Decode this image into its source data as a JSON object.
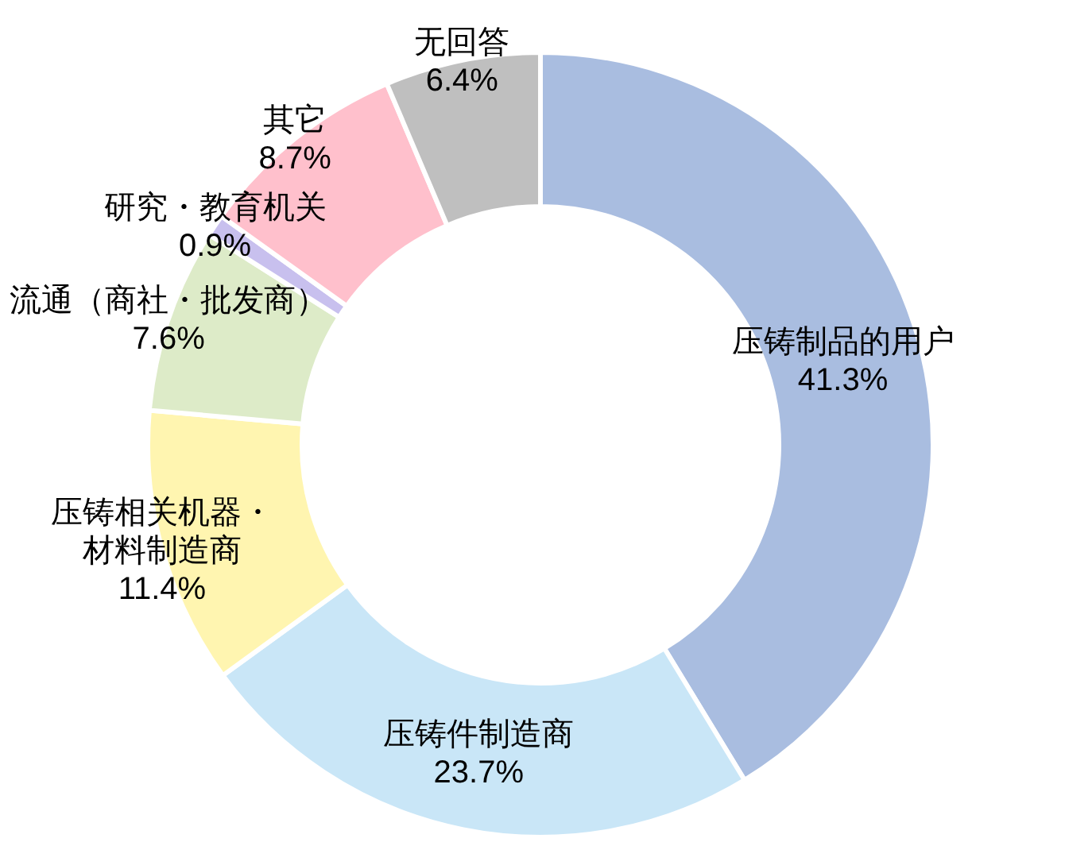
{
  "chart_data": {
    "type": "donut",
    "categories": [
      "压铸制品的用户",
      "压铸件制造商",
      "压铸相关机器・材料制造商",
      "流通（商社・批发商）",
      "研究・教育机关",
      "其它",
      "无回答"
    ],
    "values": [
      41.3,
      23.7,
      11.4,
      7.6,
      0.9,
      8.7,
      6.4
    ],
    "value_labels": [
      "41.3%",
      "23.7%",
      "11.4%",
      "7.6%",
      "0.9%",
      "8.7%",
      "6.4%"
    ],
    "colors": [
      "#a9bde0",
      "#c9e6f7",
      "#fff5b0",
      "#ddebc8",
      "#c8c0ee",
      "#ffc0cc",
      "#bfbfbf"
    ]
  }
}
